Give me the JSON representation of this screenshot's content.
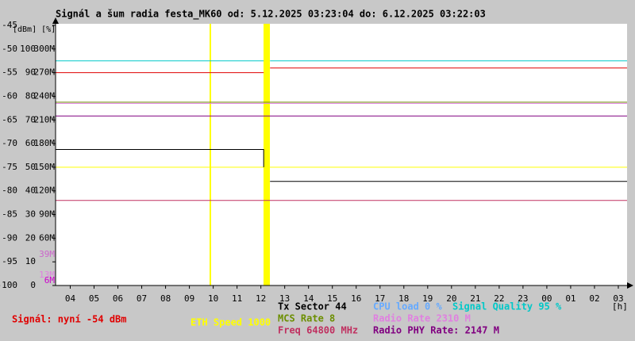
{
  "chart_data": {
    "type": "line",
    "title": "Signál a šum radia festa_MK60 od: 5.12.2025 03:23:04 do: 6.12.2025 03:22:03",
    "y_unit_label": "[dBm] [%]",
    "x_unit_label": "[h]",
    "xlim": [
      3.384,
      27.367
    ],
    "xticks": [
      {
        "value": 4,
        "label": "04"
      },
      {
        "value": 5,
        "label": "05"
      },
      {
        "value": 6,
        "label": "06"
      },
      {
        "value": 7,
        "label": "07"
      },
      {
        "value": 8,
        "label": "08"
      },
      {
        "value": 9,
        "label": "09"
      },
      10,
      11,
      12,
      13,
      14,
      15,
      16,
      17,
      18,
      19,
      20,
      21,
      22,
      23,
      {
        "value": 24,
        "label": "00"
      },
      {
        "value": 25,
        "label": "01"
      },
      {
        "value": 26,
        "label": "02"
      },
      {
        "value": 27,
        "label": "03"
      }
    ],
    "ylim": [
      -100,
      -45
    ],
    "yticks": [
      -100,
      -95,
      -90,
      -85,
      -80,
      -75,
      -70,
      -65,
      -60,
      -55,
      -50,
      -45
    ],
    "y2lim": [
      0,
      110
    ],
    "y2ticks": [
      0,
      10,
      20,
      30,
      40,
      50,
      60,
      70,
      80,
      90,
      100
    ],
    "y3lim": [
      0,
      330
    ],
    "y3ticks": [
      {
        "value": 60,
        "label": "60M"
      },
      {
        "value": 90,
        "label": "90M"
      },
      {
        "value": 120,
        "label": "120M"
      },
      {
        "value": 150,
        "label": "150M"
      },
      {
        "value": 180,
        "label": "180M"
      },
      {
        "value": 210,
        "label": "210M"
      },
      {
        "value": 240,
        "label": "240M"
      },
      {
        "value": 270,
        "label": "270M"
      },
      {
        "value": 300,
        "label": "300M"
      }
    ],
    "y3_markers": [
      {
        "value": 39,
        "label": "39M",
        "color": "#cc66cc"
      },
      {
        "value": 13,
        "label": "13M",
        "color": "#e080e0"
      },
      {
        "value": 6,
        "label": "6M",
        "color": "#cc00cc"
      }
    ],
    "series": [
      {
        "name": "Signál: nyní -54 dBm",
        "color": "#e00000",
        "axis": "y",
        "x": [
          3.384,
          3.384,
          12.117,
          12.25,
          12.384,
          27.367
        ],
        "values": [
          -50,
          -55,
          -55,
          null,
          -54,
          -54
        ]
      },
      {
        "name": "ETH Speed 1000",
        "color": "#ffff00",
        "axis": "y3",
        "x": [
          3.384,
          27.367
        ],
        "values": [
          150,
          150
        ]
      },
      {
        "name": "Tx Sector 44",
        "color": "#000000",
        "axis": "y2",
        "x": [
          3.384,
          12.117,
          12.117,
          12.25,
          12.384,
          27.367
        ],
        "values": [
          57.5,
          57.5,
          50,
          null,
          44,
          44
        ]
      },
      {
        "name": "MCS Rate 8",
        "color": "#6b8e00",
        "axis": "y2",
        "x": [
          3.384,
          27.367
        ],
        "values": [
          77.5,
          77.5
        ]
      },
      {
        "name": "Freq 64800 MHz",
        "color": "#c03060",
        "axis": "y3",
        "x": [
          3.384,
          27.367
        ],
        "values": [
          108,
          108
        ]
      },
      {
        "name": "CPU load 0 %",
        "color": "#66aaff",
        "axis": "y2",
        "x": [
          3.384,
          27.367
        ],
        "values": [
          0,
          0
        ]
      },
      {
        "name": "Signal Quality 95 %",
        "color": "#00c8c8",
        "axis": "y2",
        "x": [
          3.384,
          12.117,
          12.25,
          12.384,
          27.367
        ],
        "values": [
          95,
          95,
          null,
          95,
          95
        ]
      },
      {
        "name": "Radio Rate 2310 M",
        "color": "#e080e0",
        "axis": "y3",
        "x": [
          3.384,
          27.367
        ],
        "values": [
          231,
          231
        ]
      },
      {
        "name": "Radio PHY Rate: 2147 M",
        "color": "#800080",
        "axis": "y3",
        "x": [
          3.384,
          27.367
        ],
        "values": [
          215,
          215
        ]
      }
    ]
  }
}
